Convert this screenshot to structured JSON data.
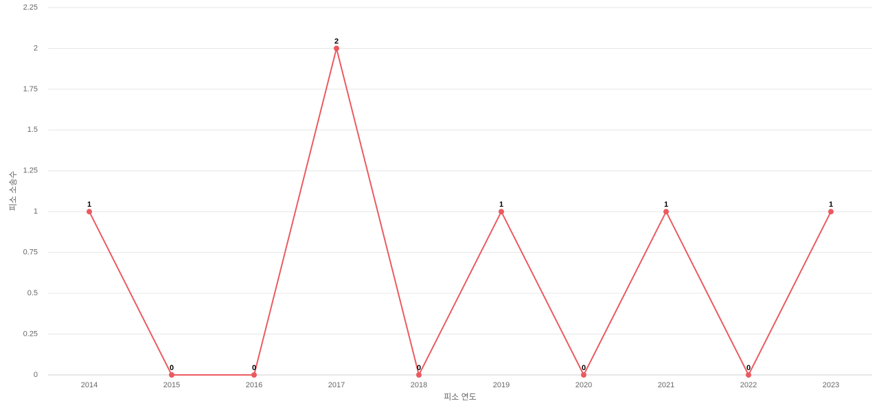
{
  "chart_data": {
    "type": "line",
    "x_label": "피소 연도",
    "y_label": "피소 소송수",
    "categories": [
      "2014",
      "2015",
      "2016",
      "2017",
      "2018",
      "2019",
      "2020",
      "2021",
      "2022",
      "2023"
    ],
    "values": [
      1,
      0,
      0,
      2,
      0,
      1,
      0,
      1,
      0,
      1
    ],
    "color": "#ea5a5f",
    "ylim": [
      0,
      2.25
    ],
    "yticks": [
      0,
      0.25,
      0.5,
      0.75,
      1,
      1.25,
      1.5,
      1.75,
      2,
      2.25
    ],
    "grid": true
  }
}
